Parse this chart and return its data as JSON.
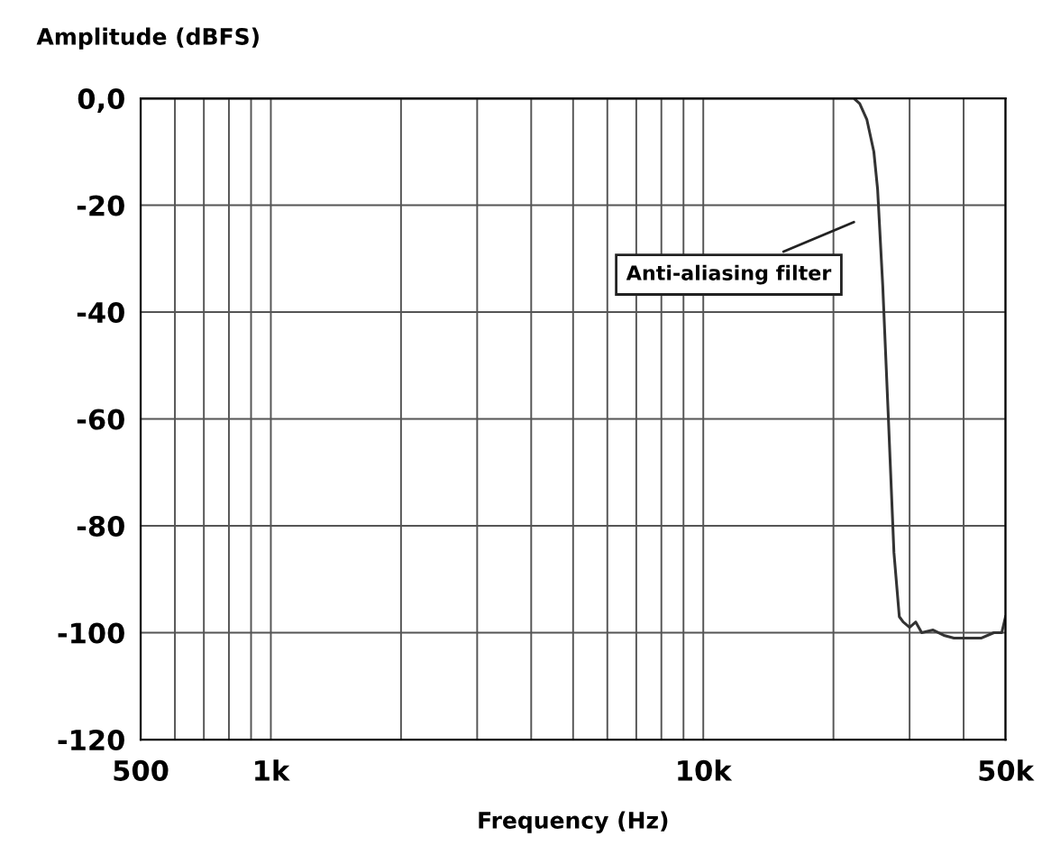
{
  "chart_data": {
    "type": "line",
    "xlabel": "Frequency (Hz)",
    "ylabel": "Amplitude (dBFS)",
    "log": "x",
    "grid": true,
    "marker": "none",
    "line_style": "solid",
    "xlim": [
      500,
      50000
    ],
    "ylim": [
      -120,
      0
    ],
    "xticks": [
      {
        "value": 500,
        "label": "500"
      },
      {
        "value": 600,
        "label": null
      },
      {
        "value": 700,
        "label": null
      },
      {
        "value": 800,
        "label": null
      },
      {
        "value": 900,
        "label": null
      },
      {
        "value": 1000,
        "label": "1k"
      },
      {
        "value": 2000,
        "label": null
      },
      {
        "value": 3000,
        "label": null
      },
      {
        "value": 4000,
        "label": null
      },
      {
        "value": 5000,
        "label": null
      },
      {
        "value": 6000,
        "label": null
      },
      {
        "value": 7000,
        "label": null
      },
      {
        "value": 8000,
        "label": null
      },
      {
        "value": 9000,
        "label": null
      },
      {
        "value": 10000,
        "label": "10k"
      },
      {
        "value": 20000,
        "label": null
      },
      {
        "value": 30000,
        "label": null
      },
      {
        "value": 40000,
        "label": null
      },
      {
        "value": 50000,
        "label": "50k"
      }
    ],
    "yticks": [
      {
        "value": 0,
        "label": "0,0"
      },
      -20,
      -40,
      -60,
      -80,
      -100,
      -120
    ],
    "annotations": [
      "Anti-aliasing filter"
    ],
    "series": [
      {
        "color": "#333333",
        "x": [
          500,
          2000,
          10000,
          20000,
          22300,
          23000,
          23900,
          24800,
          25300,
          26000,
          26800,
          27600,
          28400,
          29000,
          30000,
          31000,
          32000,
          34000,
          36000,
          38000,
          41000,
          44000,
          47000,
          49000,
          50000
        ],
        "values": [
          0,
          0,
          0,
          0,
          0,
          -1,
          -4,
          -10,
          -17,
          -35,
          -60,
          -85,
          -97,
          -98,
          -99,
          -98,
          -100,
          -99.5,
          -100.5,
          -101,
          -101,
          -101,
          -100,
          -100,
          -97
        ]
      }
    ]
  }
}
